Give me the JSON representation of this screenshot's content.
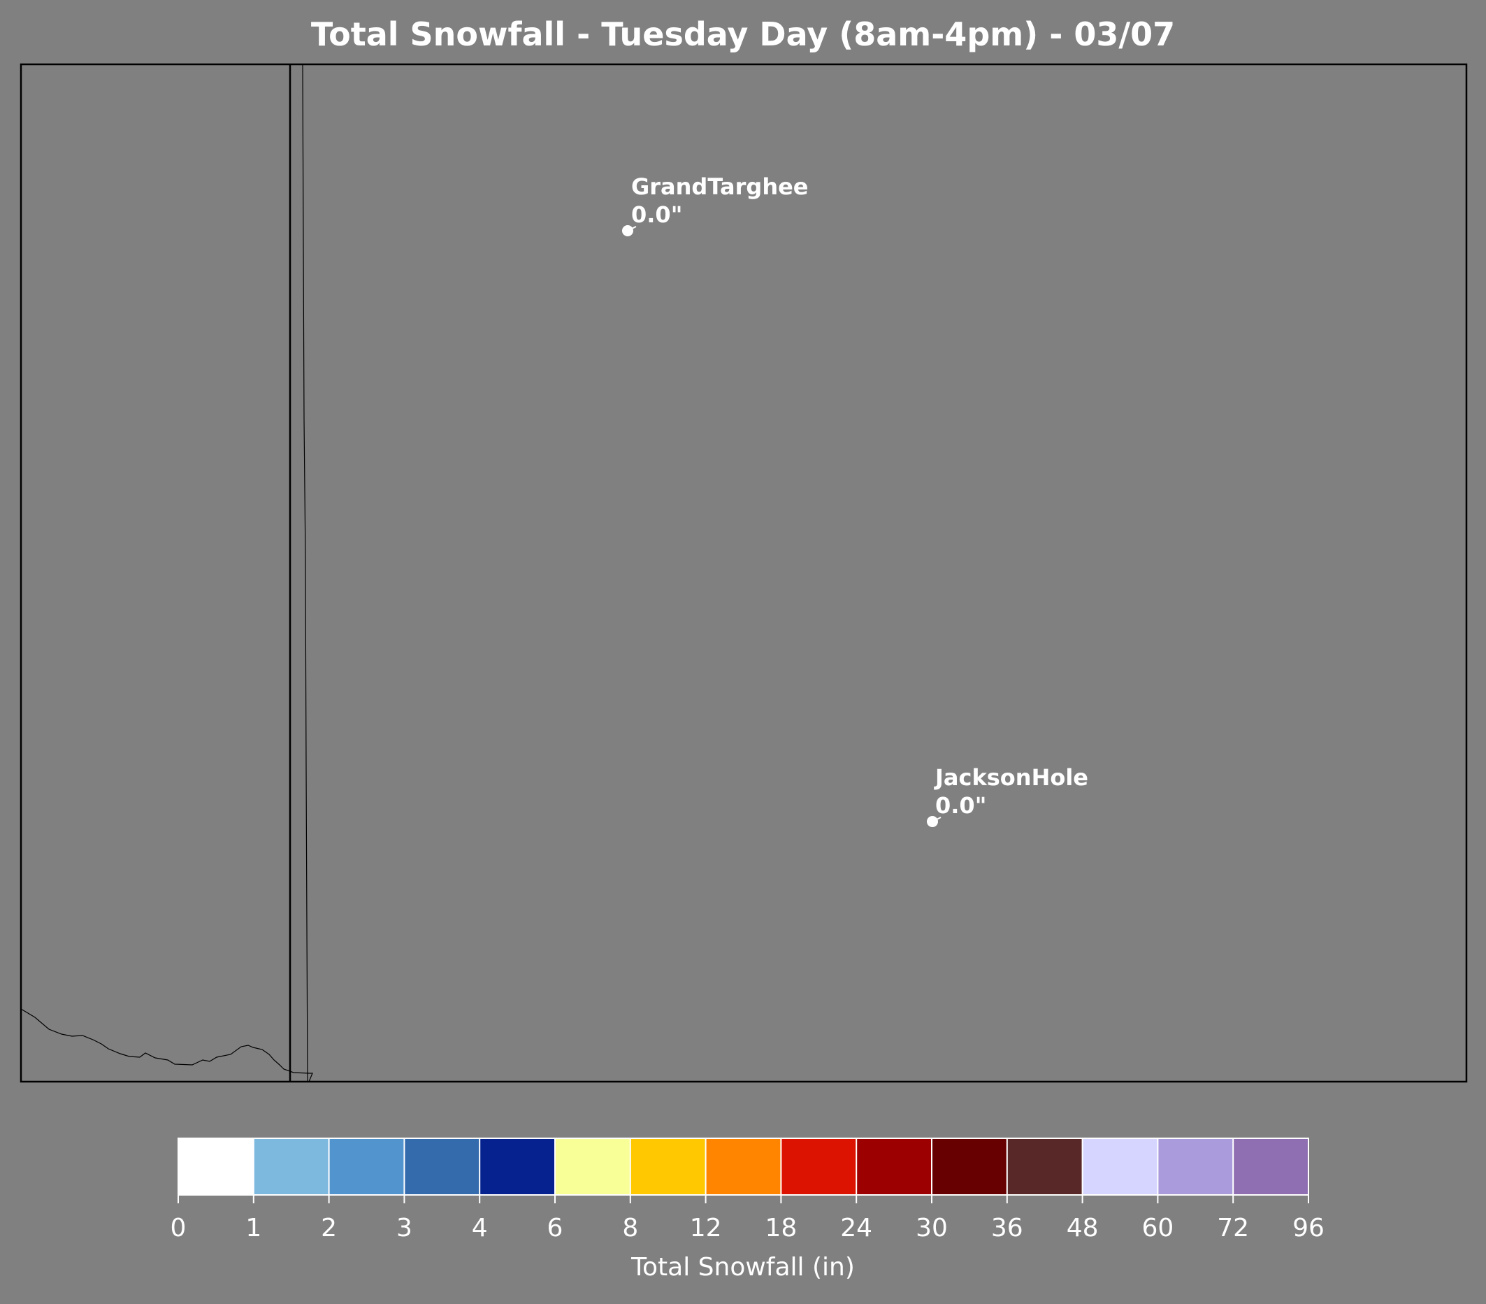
{
  "title": "Total Snowfall - Tuesday Day (8am-4pm) - 03/07",
  "background_color": "#808080",
  "stations": [
    {
      "name": "GrandTarghee",
      "value": "0.0\""
    },
    {
      "name": "JacksonHole",
      "value": "0.0\""
    }
  ],
  "colorbar": {
    "label": "Total Snowfall (in)",
    "ticks": [
      "0",
      "1",
      "2",
      "3",
      "4",
      "6",
      "8",
      "12",
      "18",
      "24",
      "30",
      "36",
      "48",
      "60",
      "72",
      "96"
    ],
    "colors": [
      "#ffffff",
      "#7db8de",
      "#5294cd",
      "#346bad",
      "#05228f",
      "#f8ff96",
      "#ffc800",
      "#ff8500",
      "#db1300",
      "#9d0000",
      "#670000",
      "#582828",
      "#d5d5ff",
      "#aa9cdc",
      "#8f6fb1"
    ]
  }
}
